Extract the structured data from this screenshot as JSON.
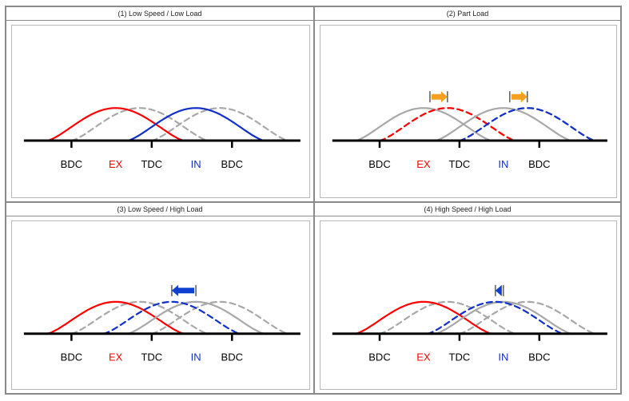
{
  "panels": [
    {
      "title": "(1) Low Speed / Low Load",
      "labels": {
        "bdc_left": "BDC",
        "ex": "EX",
        "tdc": "TDC",
        "in": "IN",
        "bdc_right": "BDC"
      },
      "exhaust": {
        "shift": 0,
        "shown": "solid",
        "color": "#ff0000"
      },
      "intake": {
        "shift": 0,
        "shown": "solid",
        "color": "#1030c8"
      },
      "arrows": []
    },
    {
      "title": "(2) Part Load",
      "labels": {
        "bdc_left": "BDC",
        "ex": "EX",
        "tdc": "TDC",
        "in": "IN",
        "bdc_right": "BDC"
      },
      "exhaust": {
        "shift": 0.3,
        "shown": "dashed",
        "color": "#ff0000"
      },
      "intake": {
        "shift": 0.15,
        "shown": "dashed",
        "color": "#1030c8"
      },
      "arrows": [
        {
          "target": "exhaust",
          "direction": "right",
          "color": "#f5a020"
        },
        {
          "target": "intake",
          "direction": "right",
          "color": "#f5a020"
        }
      ]
    },
    {
      "title": "(3) Low Speed / High Load",
      "labels": {
        "bdc_left": "BDC",
        "ex": "EX",
        "tdc": "TDC",
        "in": "IN",
        "bdc_right": "BDC"
      },
      "exhaust": {
        "shift": 0,
        "shown": "solid",
        "color": "#ff0000"
      },
      "intake": {
        "shift": -0.3,
        "shown": "dashed",
        "color": "#1030c8"
      },
      "arrows": [
        {
          "target": "intake",
          "direction": "left",
          "color": "#1040d0"
        }
      ]
    },
    {
      "title": "(4) High Speed / High Load",
      "labels": {
        "bdc_left": "BDC",
        "ex": "EX",
        "tdc": "TDC",
        "in": "IN",
        "bdc_right": "BDC"
      },
      "exhaust": {
        "shift": 0,
        "shown": "solid",
        "color": "#ff0000"
      },
      "intake": {
        "shift": -0.1,
        "shown": "dashed",
        "color": "#1030c8"
      },
      "arrows": [
        {
          "target": "intake",
          "direction": "left",
          "color": "#1040d0"
        }
      ]
    }
  ],
  "colors": {
    "reference_gray": "#a8a8a8",
    "axis": "#000000"
  }
}
